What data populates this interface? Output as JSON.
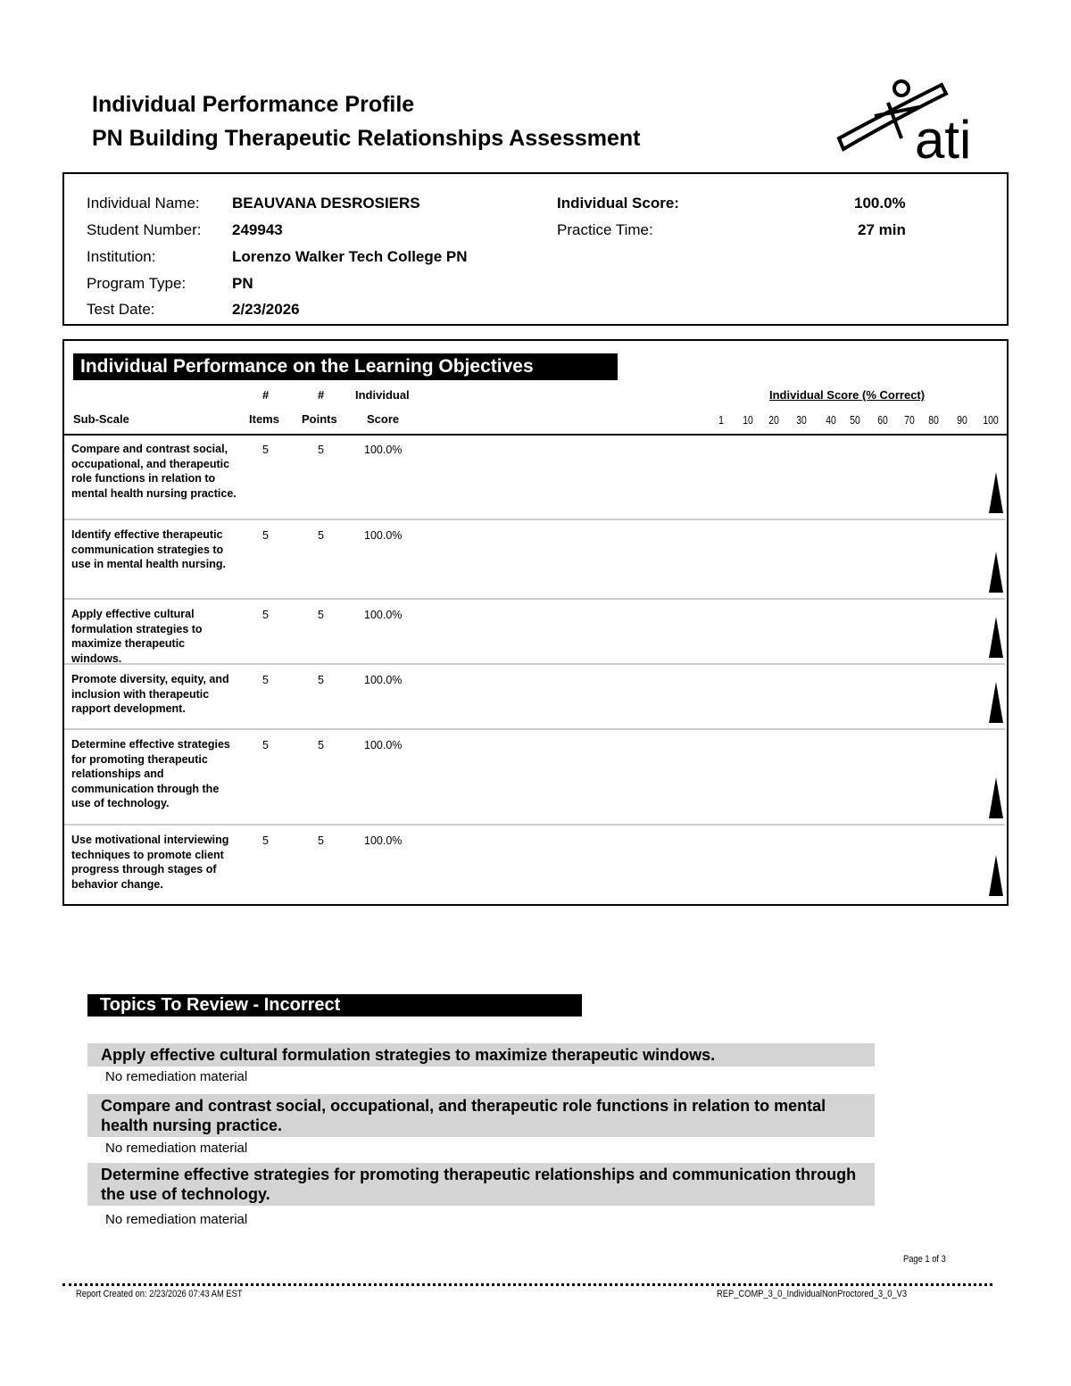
{
  "header": {
    "title1": "Individual Performance Profile",
    "title2": "PN Building Therapeutic Relationships Assessment",
    "logo_text": "ati"
  },
  "info": {
    "name_label": "Individual Name:",
    "name": "BEAUVANA  DESROSIERS",
    "student_label": "Student Number:",
    "student": "249943",
    "institution_label": "Institution:",
    "institution": "Lorenzo Walker Tech College PN",
    "program_label": "Program Type:",
    "program": "PN",
    "date_label": "Test Date:",
    "date": "2/23/2026",
    "score_label": "Individual Score:",
    "score": "100.0%",
    "time_label": "Practice Time:",
    "time": "27 min"
  },
  "objectives": {
    "title": "Individual Performance on the Learning Objectives",
    "col_subscale": "Sub-Scale",
    "col_items_1": "#",
    "col_items_2": "Items",
    "col_points_1": "#",
    "col_points_2": "Points",
    "col_score_1": "Individual",
    "col_score_2": "Score",
    "chart_title": "Individual Score (% Correct)",
    "ticks": [
      "1",
      "10",
      "20",
      "30",
      "40",
      "50",
      "60",
      "70",
      "80",
      "90",
      "100"
    ],
    "rows": [
      {
        "objective": "Compare and contrast social, occupational, and therapeutic role functions in relation to mental health nursing practice.",
        "items": "5",
        "points": "5",
        "score": "100.0%",
        "score_value": 100
      },
      {
        "objective": "Identify effective therapeutic communication strategies to use in mental health nursing.",
        "items": "5",
        "points": "5",
        "score": "100.0%",
        "score_value": 100
      },
      {
        "objective": "Apply effective cultural formulation strategies to maximize therapeutic windows.",
        "items": "5",
        "points": "5",
        "score": "100.0%",
        "score_value": 100
      },
      {
        "objective": "Promote diversity, equity, and inclusion with therapeutic rapport development.",
        "items": "5",
        "points": "5",
        "score": "100.0%",
        "score_value": 100
      },
      {
        "objective": "Determine effective strategies for promoting therapeutic relationships and communication through the use of technology.",
        "items": "5",
        "points": "5",
        "score": "100.0%",
        "score_value": 100
      },
      {
        "objective": "Use motivational interviewing techniques to promote client progress through stages of behavior change.",
        "items": "5",
        "points": "5",
        "score": "100.0%",
        "score_value": 100
      }
    ]
  },
  "topics": {
    "title": "Topics To Review - Incorrect",
    "items": [
      {
        "heading": "Apply effective cultural formulation strategies to maximize therapeutic windows.",
        "note": "No remediation material"
      },
      {
        "heading": "Compare and contrast social, occupational, and therapeutic role functions in relation to mental health nursing practice.",
        "note": "No remediation material"
      },
      {
        "heading": "Determine effective strategies for promoting therapeutic relationships and communication through the use of technology.",
        "note": "No remediation material"
      }
    ]
  },
  "footer": {
    "page": "Page 1 of 3",
    "created": "Report Created on: 2/23/2026 07:43 AM EST",
    "report_id": "REP_COMP_3_0_IndividualNonProctored_3_0_V3"
  }
}
